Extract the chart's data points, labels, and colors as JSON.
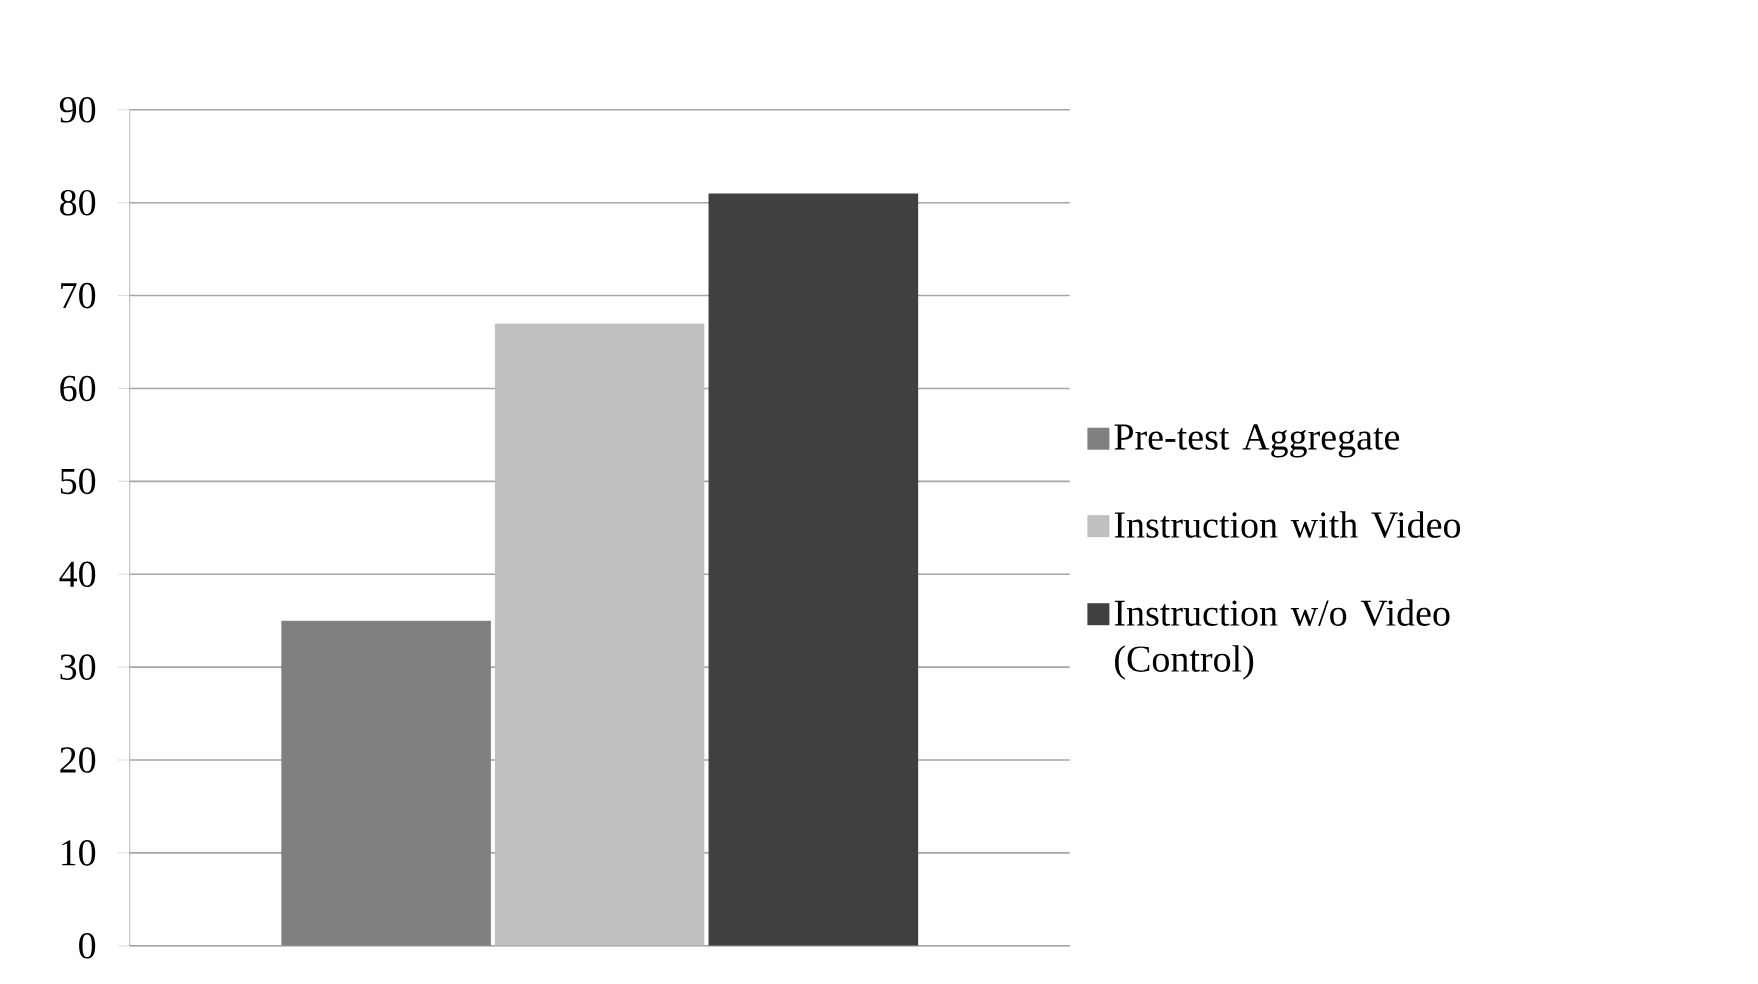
{
  "chart_data": {
    "type": "bar",
    "categories": [
      null
    ],
    "series": [
      {
        "name": "Pre-test Aggregate",
        "color": "#808080",
        "values": [
          35
        ]
      },
      {
        "name": "Instruction with Video",
        "color": "#c0c0c0",
        "values": [
          67
        ]
      },
      {
        "name": "Instruction w/o Video (Control)",
        "color": "#404040",
        "values": [
          81
        ]
      }
    ],
    "ylim": [
      0,
      90
    ],
    "yticks": [
      0,
      10,
      20,
      30,
      40,
      50,
      60,
      70,
      80,
      90
    ],
    "grid": "y",
    "legend": "right"
  }
}
